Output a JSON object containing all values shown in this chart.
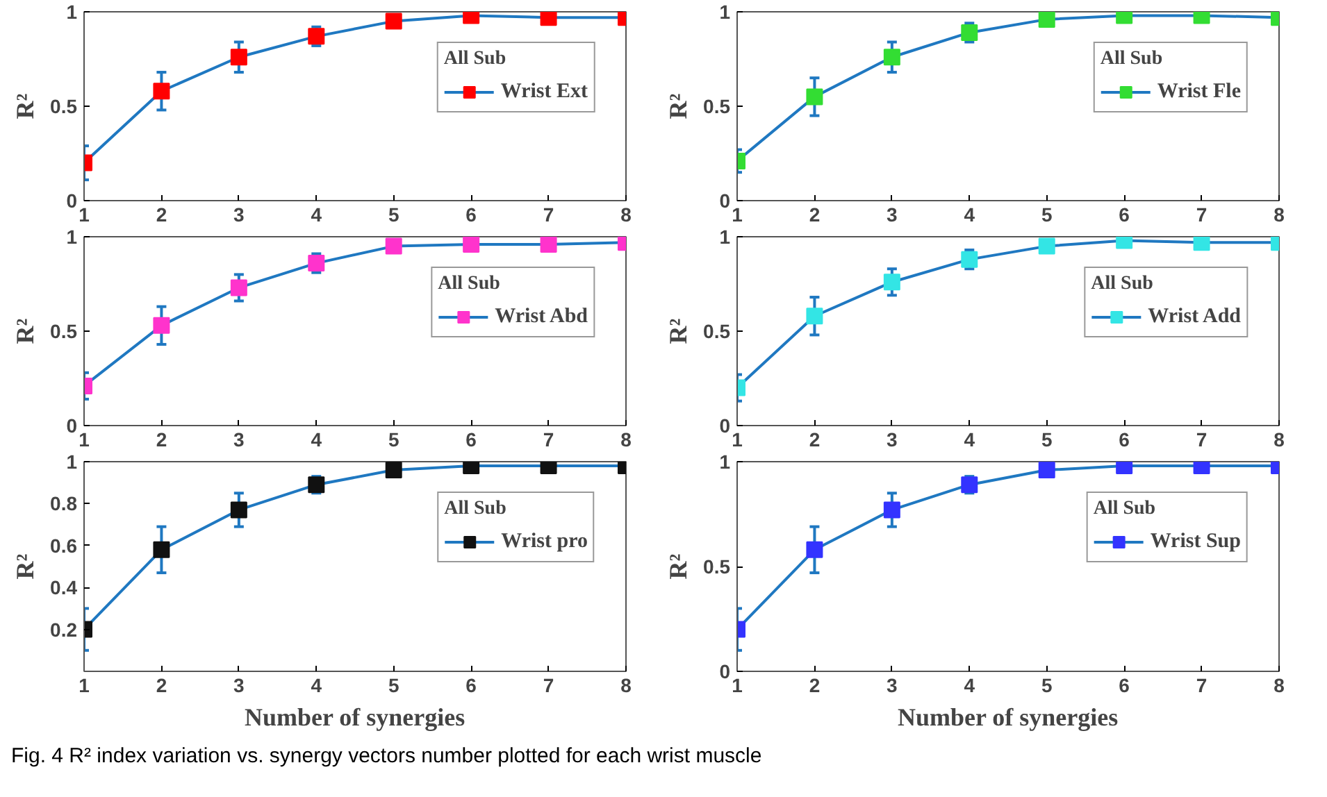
{
  "chart_data": [
    {
      "type": "line",
      "x": [
        1,
        2,
        3,
        4,
        5,
        6,
        7,
        8
      ],
      "ylabel": "R²",
      "legend_title": "All Sub",
      "legend": "top right",
      "marker": "square",
      "grid": false,
      "xlim": [
        1,
        8
      ],
      "xticks": [
        1,
        2,
        3,
        4,
        5,
        6,
        7,
        8
      ],
      "ylim": [
        0,
        1
      ],
      "yticks": [
        0,
        0.5,
        1
      ],
      "series": [
        {
          "name": "Wrist Ext",
          "color": "#1f78c1",
          "colors": [
            "#ff0000",
            "#ff0000",
            "#ff0000",
            "#ff0000",
            "#ff0000",
            "#ff0000",
            "#ff0000",
            "#ff0000"
          ],
          "values": [
            0.2,
            0.58,
            0.76,
            0.87,
            0.95,
            0.98,
            0.97,
            0.97
          ],
          "errors": [
            0.09,
            0.1,
            0.08,
            0.05,
            null,
            null,
            null,
            null
          ]
        }
      ]
    },
    {
      "type": "line",
      "x": [
        1,
        2,
        3,
        4,
        5,
        6,
        7,
        8
      ],
      "ylabel": "R²",
      "legend_title": "All Sub",
      "legend": "top right",
      "marker": "square",
      "grid": false,
      "xlim": [
        1,
        8
      ],
      "xticks": [
        1,
        2,
        3,
        4,
        5,
        6,
        7,
        8
      ],
      "ylim": [
        0,
        1
      ],
      "yticks": [
        0,
        0.5,
        1
      ],
      "series": [
        {
          "name": "Wrist Fle",
          "color": "#1f78c1",
          "colors": [
            "#33dd33",
            "#33dd33",
            "#33dd33",
            "#33dd33",
            "#33dd33",
            "#33dd33",
            "#33dd33",
            "#33dd33"
          ],
          "values": [
            0.21,
            0.55,
            0.76,
            0.89,
            0.96,
            0.98,
            0.98,
            0.97
          ],
          "errors": [
            0.06,
            0.1,
            0.08,
            0.05,
            null,
            null,
            null,
            null
          ]
        }
      ]
    },
    {
      "type": "line",
      "x": [
        1,
        2,
        3,
        4,
        5,
        6,
        7,
        8
      ],
      "ylabel": "R²",
      "legend_title": "All Sub",
      "legend": "top right",
      "marker": "square",
      "grid": false,
      "xlim": [
        1,
        8
      ],
      "xticks": [
        1,
        2,
        3,
        4,
        5,
        6,
        7,
        8
      ],
      "ylim": [
        0,
        1
      ],
      "yticks": [
        0,
        0.5,
        1
      ],
      "series": [
        {
          "name": "Wrist Abd",
          "color": "#1f78c1",
          "colors": [
            "#ff33cc",
            "#ff33cc",
            "#ff33cc",
            "#ff33cc",
            "#ff33cc",
            "#ff33cc",
            "#ff33cc",
            "#ff33cc"
          ],
          "values": [
            0.21,
            0.53,
            0.73,
            0.86,
            0.95,
            0.96,
            0.96,
            0.97
          ],
          "errors": [
            0.07,
            0.1,
            0.07,
            0.05,
            null,
            null,
            null,
            null
          ]
        }
      ]
    },
    {
      "type": "line",
      "x": [
        1,
        2,
        3,
        4,
        5,
        6,
        7,
        8
      ],
      "ylabel": "R²",
      "legend_title": "All Sub",
      "legend": "top right",
      "marker": "square",
      "grid": false,
      "xlim": [
        1,
        8
      ],
      "xticks": [
        1,
        2,
        3,
        4,
        5,
        6,
        7,
        8
      ],
      "ylim": [
        0,
        1
      ],
      "yticks": [
        0,
        0.5,
        1
      ],
      "series": [
        {
          "name": "Wrist Add",
          "color": "#1f78c1",
          "colors": [
            "#33e5e5",
            "#33e5e5",
            "#33e5e5",
            "#33e5e5",
            "#33e5e5",
            "#33e5e5",
            "#33e5e5",
            "#33e5e5"
          ],
          "values": [
            0.2,
            0.58,
            0.76,
            0.88,
            0.95,
            0.98,
            0.97,
            0.97
          ],
          "errors": [
            0.07,
            0.1,
            0.07,
            0.05,
            null,
            null,
            null,
            null
          ]
        }
      ]
    },
    {
      "type": "line",
      "x": [
        1,
        2,
        3,
        4,
        5,
        6,
        7,
        8
      ],
      "xlabel": "Number of synergies",
      "ylabel": "R²",
      "legend_title": "All Sub",
      "legend": "top right",
      "marker": "square",
      "grid": false,
      "xlim": [
        1,
        8
      ],
      "xticks": [
        1,
        2,
        3,
        4,
        5,
        6,
        7,
        8
      ],
      "ylim": [
        0,
        1
      ],
      "yticks": [
        0.2,
        0.4,
        0.6,
        0.8,
        1
      ],
      "series": [
        {
          "name": "Wrist pro",
          "color": "#1f78c1",
          "colors": [
            "#111111",
            "#111111",
            "#111111",
            "#111111",
            "#111111",
            "#111111",
            "#111111",
            "#111111"
          ],
          "values": [
            0.2,
            0.58,
            0.77,
            0.89,
            0.96,
            0.98,
            0.98,
            0.98
          ],
          "errors": [
            0.1,
            0.11,
            0.08,
            0.04,
            null,
            null,
            null,
            null
          ]
        }
      ]
    },
    {
      "type": "line",
      "x": [
        1,
        2,
        3,
        4,
        5,
        6,
        7,
        8
      ],
      "xlabel": "Number of synergies",
      "ylabel": "R²",
      "legend_title": "All Sub",
      "legend": "top right",
      "marker": "square",
      "grid": false,
      "xlim": [
        1,
        8
      ],
      "xticks": [
        1,
        2,
        3,
        4,
        5,
        6,
        7,
        8
      ],
      "ylim": [
        0,
        1
      ],
      "yticks": [
        0,
        0.5,
        1
      ],
      "annotations": [
        "Fig. 4 R² index variation vs. synergy vectors number plotted for each wrist muscle"
      ],
      "series": [
        {
          "name": "Wrist Sup",
          "color": "#1f78c1",
          "colors": [
            "#3333ff",
            "#3333ff",
            "#3333ff",
            "#3333ff",
            "#3333ff",
            "#3333ff",
            "#3333ff",
            "#3333ff"
          ],
          "values": [
            0.2,
            0.58,
            0.77,
            0.89,
            0.96,
            0.98,
            0.98,
            0.98
          ],
          "errors": [
            0.1,
            0.11,
            0.08,
            0.04,
            null,
            null,
            null,
            null
          ]
        }
      ]
    }
  ]
}
